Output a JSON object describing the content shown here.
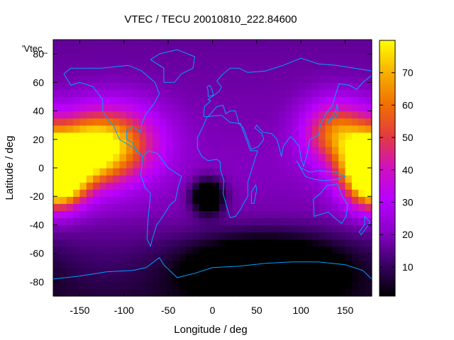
{
  "chart_data": {
    "type": "heatmap",
    "title": "VTEC / TECU 20010810_222.84600",
    "xlabel": "Longitude / deg",
    "ylabel": "Latitude / deg",
    "xlim": [
      -180,
      180
    ],
    "ylim": [
      -90,
      90
    ],
    "x_ticks": [
      -150,
      -100,
      -50,
      0,
      50,
      100,
      150
    ],
    "y_ticks": [
      -80,
      -60,
      -40,
      -20,
      0,
      20,
      40,
      60,
      80
    ],
    "colorbar": {
      "range": [
        1,
        80
      ],
      "ticks": [
        10,
        20,
        30,
        40,
        50,
        60,
        70
      ],
      "palette": [
        "#000000",
        "#3a0066",
        "#8a00c8",
        "#b800ff",
        "#d010c0",
        "#e43a40",
        "#f07000",
        "#f8b000",
        "#ffff00"
      ]
    },
    "legend_key": "'Vtec_",
    "grid": false,
    "overlay": "coastlines",
    "field_description_blobs": [
      {
        "lon": -150,
        "lat": 10,
        "value": 74,
        "sigma_lon": 30,
        "sigma_lat": 16
      },
      {
        "lon": -110,
        "lat": 18,
        "value": 62,
        "sigma_lon": 35,
        "sigma_lat": 18
      },
      {
        "lon": -170,
        "lat": -10,
        "value": 75,
        "sigma_lon": 18,
        "sigma_lat": 12
      },
      {
        "lon": 170,
        "lat": 0,
        "value": 76,
        "sigma_lon": 20,
        "sigma_lat": 16
      },
      {
        "lon": 140,
        "lat": 25,
        "value": 62,
        "sigma_lon": 25,
        "sigma_lat": 15
      },
      {
        "lon": -5,
        "lat": -20,
        "value": -15,
        "sigma_lon": 12,
        "sigma_lat": 8
      },
      {
        "lon": 60,
        "lat": -70,
        "value": -14,
        "sigma_lon": 60,
        "sigma_lat": 15
      }
    ]
  }
}
